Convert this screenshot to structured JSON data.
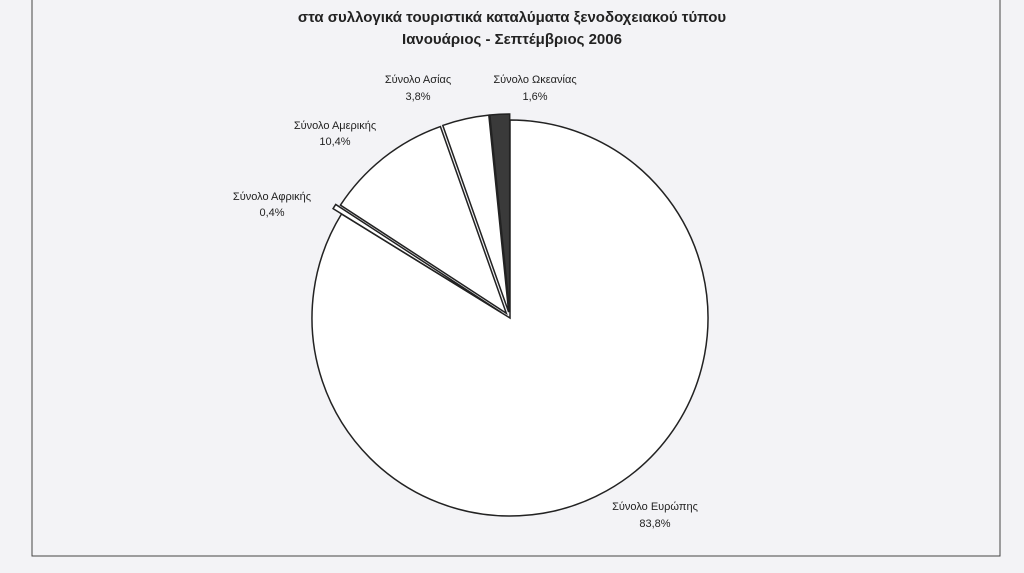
{
  "chart_data": {
    "type": "pie",
    "title": "στα συλλογικά τουριστικά καταλύματα ξενοδοχειακού τύπου",
    "subtitle": "Ιανουάριος - Σεπτέμβριος 2006",
    "categories": [
      "Σύνολο Ευρώπης",
      "Σύνολο Αφρικής",
      "Σύνολο Αμερικής",
      "Σύνολο Ασίας",
      "Σύνολο Ωκεανίας"
    ],
    "values": [
      83.8,
      0.4,
      10.4,
      3.8,
      1.6
    ],
    "value_labels": [
      "83,8%",
      "0,4%",
      "10,4%",
      "3,8%",
      "1,6%"
    ],
    "colors": [
      "#ffffff",
      "#ffffff",
      "#ffffff",
      "#ffffff",
      "#3a3a3a"
    ]
  }
}
